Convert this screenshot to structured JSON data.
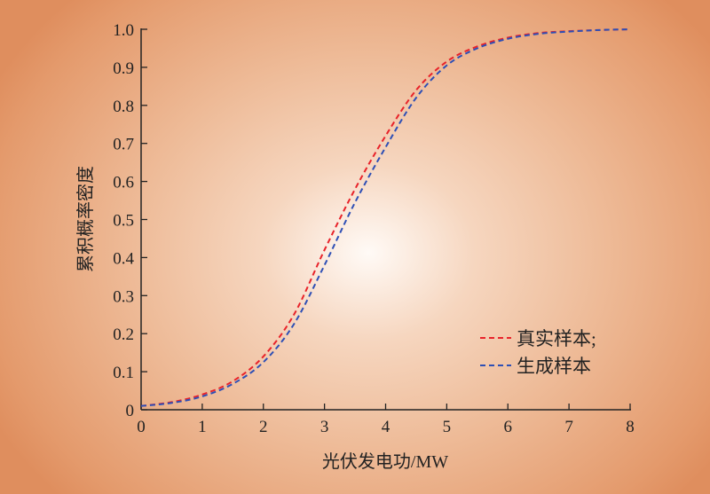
{
  "chart_data": {
    "type": "line",
    "title": "",
    "xlabel": "光伏发电功/MW",
    "ylabel": "累积概率密度",
    "xlim": [
      0,
      8
    ],
    "ylim": [
      0,
      1.0
    ],
    "xticks": [
      "0",
      "1",
      "2",
      "3",
      "4",
      "5",
      "6",
      "7",
      "8"
    ],
    "yticks": [
      "0",
      "0.1",
      "0.2",
      "0.3",
      "0.4",
      "0.5",
      "0.6",
      "0.7",
      "0.8",
      "0.9",
      "1.0"
    ],
    "grid": false,
    "legend_position": "bottom-right",
    "x": [
      0,
      0.5,
      1,
      1.5,
      2,
      2.5,
      3,
      3.5,
      4,
      4.5,
      5,
      5.5,
      6,
      6.5,
      7,
      7.5,
      8
    ],
    "series": [
      {
        "name": "真实样本;",
        "color": "#e8232a",
        "style": "dashed",
        "values": [
          0.01,
          0.02,
          0.04,
          0.075,
          0.14,
          0.25,
          0.42,
          0.58,
          0.72,
          0.84,
          0.915,
          0.955,
          0.978,
          0.99,
          0.995,
          0.998,
          1.0
        ]
      },
      {
        "name": "生成样本",
        "color": "#2e4fb5",
        "style": "dashed",
        "values": [
          0.01,
          0.018,
          0.035,
          0.068,
          0.125,
          0.225,
          0.38,
          0.545,
          0.69,
          0.82,
          0.905,
          0.95,
          0.975,
          0.988,
          0.994,
          0.998,
          1.0
        ]
      }
    ]
  }
}
